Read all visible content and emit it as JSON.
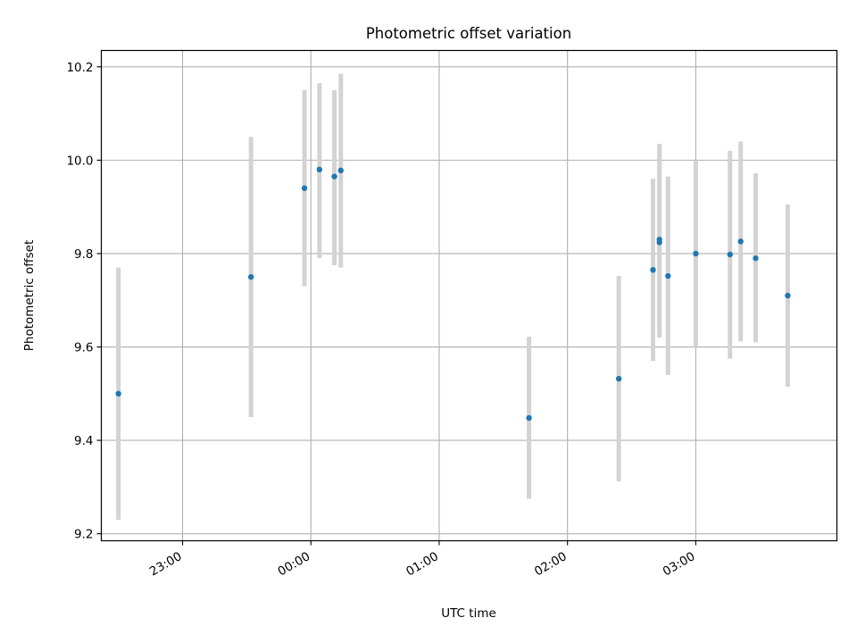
{
  "chart_data": {
    "type": "scatter",
    "title": "Photometric offset variation",
    "xlabel": "UTC time",
    "ylabel": "Photometric offset",
    "x_tick_labels": [
      "23:00",
      "00:00",
      "01:00",
      "02:00",
      "03:00"
    ],
    "x_tick_times": [
      "23:00",
      "00:00",
      "01:00",
      "02:00",
      "03:00"
    ],
    "y_ticks": [
      9.2,
      9.4,
      9.6,
      9.8,
      10.0,
      10.2
    ],
    "y_tick_labels": [
      "9.2",
      "9.4",
      "9.6",
      "9.8",
      "10.0",
      "10.2"
    ],
    "xlim": [
      "22:22",
      "04:06"
    ],
    "ylim": [
      9.185,
      10.235
    ],
    "grid": true,
    "marker_color": "#1f77b4",
    "errorbar_color": "#d3d3d3",
    "points": [
      {
        "time": "22:30",
        "y": 9.5,
        "err_low": 9.23,
        "err_high": 9.77
      },
      {
        "time": "23:32",
        "y": 9.75,
        "err_low": 9.45,
        "err_high": 10.05
      },
      {
        "time": "23:57",
        "y": 9.94,
        "err_low": 9.73,
        "err_high": 10.15
      },
      {
        "time": "00:04",
        "y": 9.98,
        "err_low": 9.79,
        "err_high": 10.165
      },
      {
        "time": "00:11",
        "y": 9.965,
        "err_low": 9.775,
        "err_high": 10.15
      },
      {
        "time": "00:14",
        "y": 9.978,
        "err_low": 9.77,
        "err_high": 10.185
      },
      {
        "time": "01:42",
        "y": 9.448,
        "err_low": 9.275,
        "err_high": 9.622
      },
      {
        "time": "02:24",
        "y": 9.532,
        "err_low": 9.312,
        "err_high": 9.752
      },
      {
        "time": "02:40",
        "y": 9.765,
        "err_low": 9.57,
        "err_high": 9.96
      },
      {
        "time": "02:43",
        "y": 9.824,
        "err_low": 9.62,
        "err_high": 10.035
      },
      {
        "time": "02:43",
        "y": 9.83,
        "err_low": 9.63,
        "err_high": 10.03
      },
      {
        "time": "02:47",
        "y": 9.752,
        "err_low": 9.54,
        "err_high": 9.965
      },
      {
        "time": "03:00",
        "y": 9.8,
        "err_low": 9.6,
        "err_high": 10.0
      },
      {
        "time": "03:16",
        "y": 9.798,
        "err_low": 9.575,
        "err_high": 10.02
      },
      {
        "time": "03:21",
        "y": 9.826,
        "err_low": 9.612,
        "err_high": 10.04
      },
      {
        "time": "03:28",
        "y": 9.79,
        "err_low": 9.61,
        "err_high": 9.972
      },
      {
        "time": "03:43",
        "y": 9.71,
        "err_low": 9.515,
        "err_high": 9.905
      }
    ]
  }
}
